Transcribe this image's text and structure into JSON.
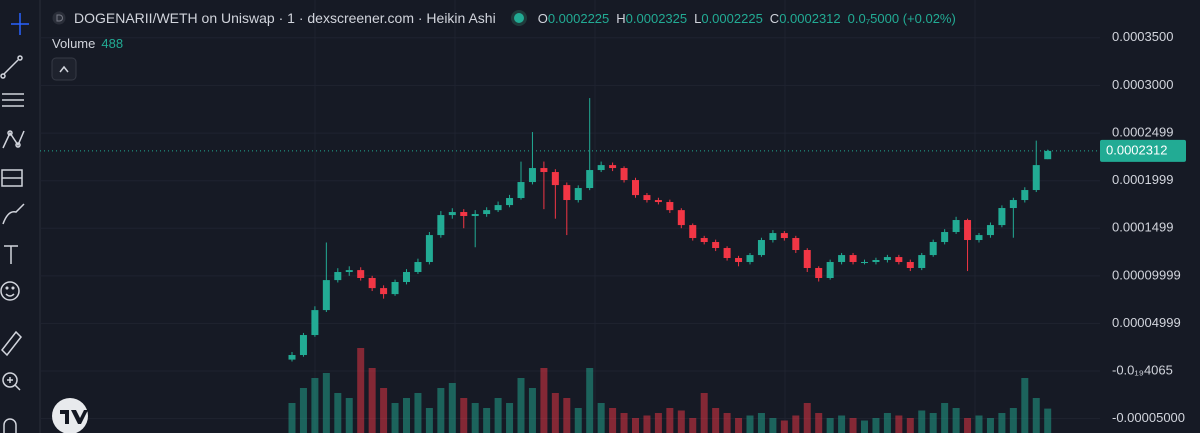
{
  "header": {
    "title": "DOGENARII/WETH on Uniswap · 1 · dexscreener.com · Heikin Ashi",
    "ohlc": [
      {
        "key": "O",
        "value": "0.0002225"
      },
      {
        "key": "H",
        "value": "0.0002325"
      },
      {
        "key": "L",
        "value": "0.0002225"
      },
      {
        "key": "C",
        "value": "0.0002312"
      }
    ],
    "change": "0.0₇5000 (+0.02%)",
    "volume_label": "Volume",
    "volume_value": "488"
  },
  "chart_data": {
    "type": "candlestick",
    "up_color": "#22ab94",
    "down_color": "#f23645",
    "ylim": [
      -6.51e-05,
      0.0003897
    ],
    "yticks": [
      {
        "value": 0.00035,
        "label": "0.0003500"
      },
      {
        "value": 0.0003,
        "label": "0.0003000"
      },
      0.0002499,
      0.0001999,
      0.0001499,
      9.999e-05,
      4.999e-05,
      {
        "value": -4.065e-20,
        "label": "-0.0₁₉4065"
      },
      {
        "value": -5e-05,
        "label": "-0.00005000"
      }
    ],
    "grid": true,
    "open": [
      1.2e-05,
      1.68e-05,
      3.78e-05,
      6.4e-05,
      9.55e-05,
      0.000104,
      0.000106,
      9.77e-05,
      8.71e-05,
      8.08e-05,
      9.35e-05,
      0.000104,
      0.0001145,
      0.0001428,
      0.0001638,
      0.000167,
      0.0001628,
      0.0001649,
      0.000169,
      0.0001743,
      0.0001817,
      0.0001985,
      0.0002132,
      0.000209,
      0.0001953,
      0.0001796,
      0.0001922,
      0.0002111,
      0.0002163,
      0.0002132,
      0.0002006,
      0.0001848,
      0.0001796,
      0.0001775,
      0.000169,
      0.0001533,
      0.0001397,
      0.0001355,
      0.0001292,
      0.0001187,
      0.0001145,
      0.0001218,
      0.0001376,
      0.0001449,
      0.0001397,
      0.0001271,
      0.0001082,
      9.77e-05,
      0.0001145,
      0.0001218,
      0.0001145,
      0.0001145,
      0.0001166,
      0.0001197,
      0.0001145,
      0.0001082,
      0.0001218,
      0.0001355,
      0.000146,
      0.0001586,
      0.0001376,
      0.0001428,
      0.0001533,
      0.0001712,
      0.0001796,
      0.0001901,
      0.0002225
    ],
    "high": [
      2e-05,
      4e-05,
      6.8e-05,
      0.000135,
      0.000108,
      0.00011,
      0.000109,
      0.0001,
      9e-05,
      9.6e-05,
      0.000107,
      0.000118,
      0.000146,
      0.000168,
      0.000171,
      0.00017,
      0.000169,
      0.000172,
      0.000178,
      0.000185,
      0.00022,
      0.000251,
      0.00022,
      0.000212,
      0.000198,
      0.000195,
      0.0002867,
      0.00022,
      0.000219,
      0.000215,
      0.000203,
      0.000187,
      0.000182,
      0.00018,
      0.000171,
      0.000155,
      0.000142,
      0.000138,
      0.000131,
      0.000121,
      0.000124,
      0.00014,
      0.000148,
      0.000147,
      0.000142,
      0.000129,
      0.00011,
      0.000117,
      0.000124,
      0.000124,
      0.000117,
      0.000119,
      0.000122,
      0.000122,
      0.000117,
      0.000124,
      0.000138,
      0.000149,
      0.000162,
      0.00016,
      0.000145,
      0.000156,
      0.000174,
      0.000182,
      0.000193,
      0.000242,
      0.0002325
    ],
    "low": [
      1e-05,
      1.5e-05,
      3.6e-05,
      6.2e-05,
      9.3e-05,
      0.0001,
      9.5e-05,
      8.4e-05,
      7.6e-05,
      7.9e-05,
      9.1e-05,
      0.000102,
      0.000112,
      0.00014,
      0.00016,
      0.00015,
      0.00013,
      0.000162,
      0.000167,
      0.000172,
      0.00018,
      0.000196,
      0.00017,
      0.00016,
      0.0001428,
      0.000177,
      0.00019,
      0.000209,
      0.00021,
      0.000198,
      0.000182,
      0.000177,
      0.000175,
      0.000166,
      0.00015,
      0.000137,
      0.000133,
      0.000126,
      0.000116,
      0.00011,
      0.000112,
      0.00012,
      0.000135,
      0.000137,
      0.000124,
      0.000104,
      9.4e-05,
      9.6e-05,
      0.000112,
      0.000112,
      0.000112,
      0.000112,
      0.000114,
      0.000112,
      0.000105,
      0.000106,
      0.00012,
      0.000133,
      0.000144,
      0.000105,
      0.000135,
      0.00014,
      0.000151,
      0.00014,
      0.000177,
      0.000188,
      0.0002225
    ],
    "close": [
      1.68e-05,
      3.78e-05,
      6.4e-05,
      9.55e-05,
      0.000104,
      0.000106,
      9.77e-05,
      8.71e-05,
      8.08e-05,
      9.35e-05,
      0.000104,
      0.0001145,
      0.0001428,
      0.0001638,
      0.000167,
      0.0001628,
      0.0001649,
      0.000169,
      0.0001743,
      0.0001817,
      0.0001985,
      0.0002132,
      0.000209,
      0.0001953,
      0.0001796,
      0.0001922,
      0.0002111,
      0.0002163,
      0.0002132,
      0.0002006,
      0.0001848,
      0.0001796,
      0.0001775,
      0.000169,
      0.0001533,
      0.0001397,
      0.0001355,
      0.0001292,
      0.0001187,
      0.0001145,
      0.0001218,
      0.0001376,
      0.0001449,
      0.0001397,
      0.0001271,
      0.0001082,
      9.77e-05,
      0.0001145,
      0.0001218,
      0.0001145,
      0.0001145,
      0.0001166,
      0.0001197,
      0.0001145,
      0.0001082,
      0.0001218,
      0.0001355,
      0.000146,
      0.0001586,
      0.0001376,
      0.0001428,
      0.0001533,
      0.0001712,
      0.0001796,
      0.0001901,
      0.0002163,
      0.0002312
    ],
    "volume": [
      600,
      900,
      1100,
      1200,
      800,
      700,
      1700,
      1300,
      900,
      600,
      700,
      800,
      500,
      900,
      1000,
      700,
      600,
      500,
      700,
      600,
      1100,
      900,
      1300,
      800,
      700,
      500,
      1300,
      600,
      500,
      400,
      300,
      350,
      400,
      500,
      450,
      300,
      800,
      500,
      400,
      300,
      350,
      400,
      300,
      250,
      350,
      600,
      400,
      300,
      350,
      300,
      250,
      300,
      400,
      350,
      300,
      450,
      400,
      600,
      500,
      300,
      350,
      300,
      400,
      500,
      1100,
      700,
      488
    ]
  }
}
